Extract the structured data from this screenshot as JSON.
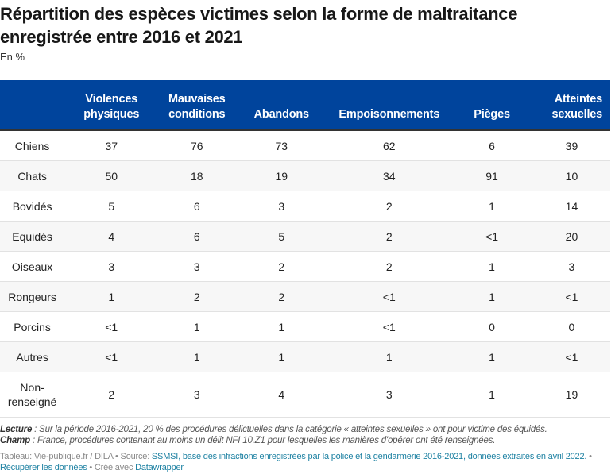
{
  "title": "Répartition des espèces victimes selon la forme de maltraitance enregistrée entre 2016 et 2021",
  "subtitle": "En %",
  "chart_data": {
    "type": "table",
    "columns": [
      "",
      "Violences physiques",
      "Mauvaises conditions",
      "Abandons",
      "Empoisonnements",
      "Pièges",
      "Atteintes sexuelles"
    ],
    "rows": [
      [
        "Chiens",
        "37",
        "76",
        "73",
        "62",
        "6",
        "39"
      ],
      [
        "Chats",
        "50",
        "18",
        "19",
        "34",
        "91",
        "10"
      ],
      [
        "Bovidés",
        "5",
        "6",
        "3",
        "2",
        "1",
        "14"
      ],
      [
        "Equidés",
        "4",
        "6",
        "5",
        "2",
        "<1",
        "20"
      ],
      [
        "Oiseaux",
        "3",
        "3",
        "2",
        "2",
        "1",
        "3"
      ],
      [
        "Rongeurs",
        "1",
        "2",
        "2",
        "<1",
        "1",
        "<1"
      ],
      [
        "Porcins",
        "<1",
        "1",
        "1",
        "<1",
        "0",
        "0"
      ],
      [
        "Autres",
        "<1",
        "1",
        "1",
        "1",
        "1",
        "<1"
      ],
      [
        "Non-renseigné",
        "2",
        "3",
        "4",
        "3",
        "1",
        "19"
      ]
    ],
    "header_color": "#00449c"
  },
  "notes": {
    "lecture_label": "Lecture",
    "lecture_text": " : Sur la période 2016-2021, 20 % des procédures délictuelles dans la catégorie « atteintes sexuelles » ont pour victime des équidés.",
    "champ_label": "Champ",
    "champ_text": " : France, procédures contenant au moins un délit NFI 10.Z1 pour lesquelles les manières d'opérer ont été renseignées."
  },
  "footer": {
    "credit": "Tableau: Vie-publique.fr / DILA • Source: ",
    "source_link": "SSMSI, base des infractions enregistrées par la police et la gendarmerie 2016-2021, données extraites en avril 2022.",
    "sep": " • ",
    "data_link": "Récupérer les données",
    "created": " • Créé avec ",
    "dw_link": "Datawrapper"
  }
}
